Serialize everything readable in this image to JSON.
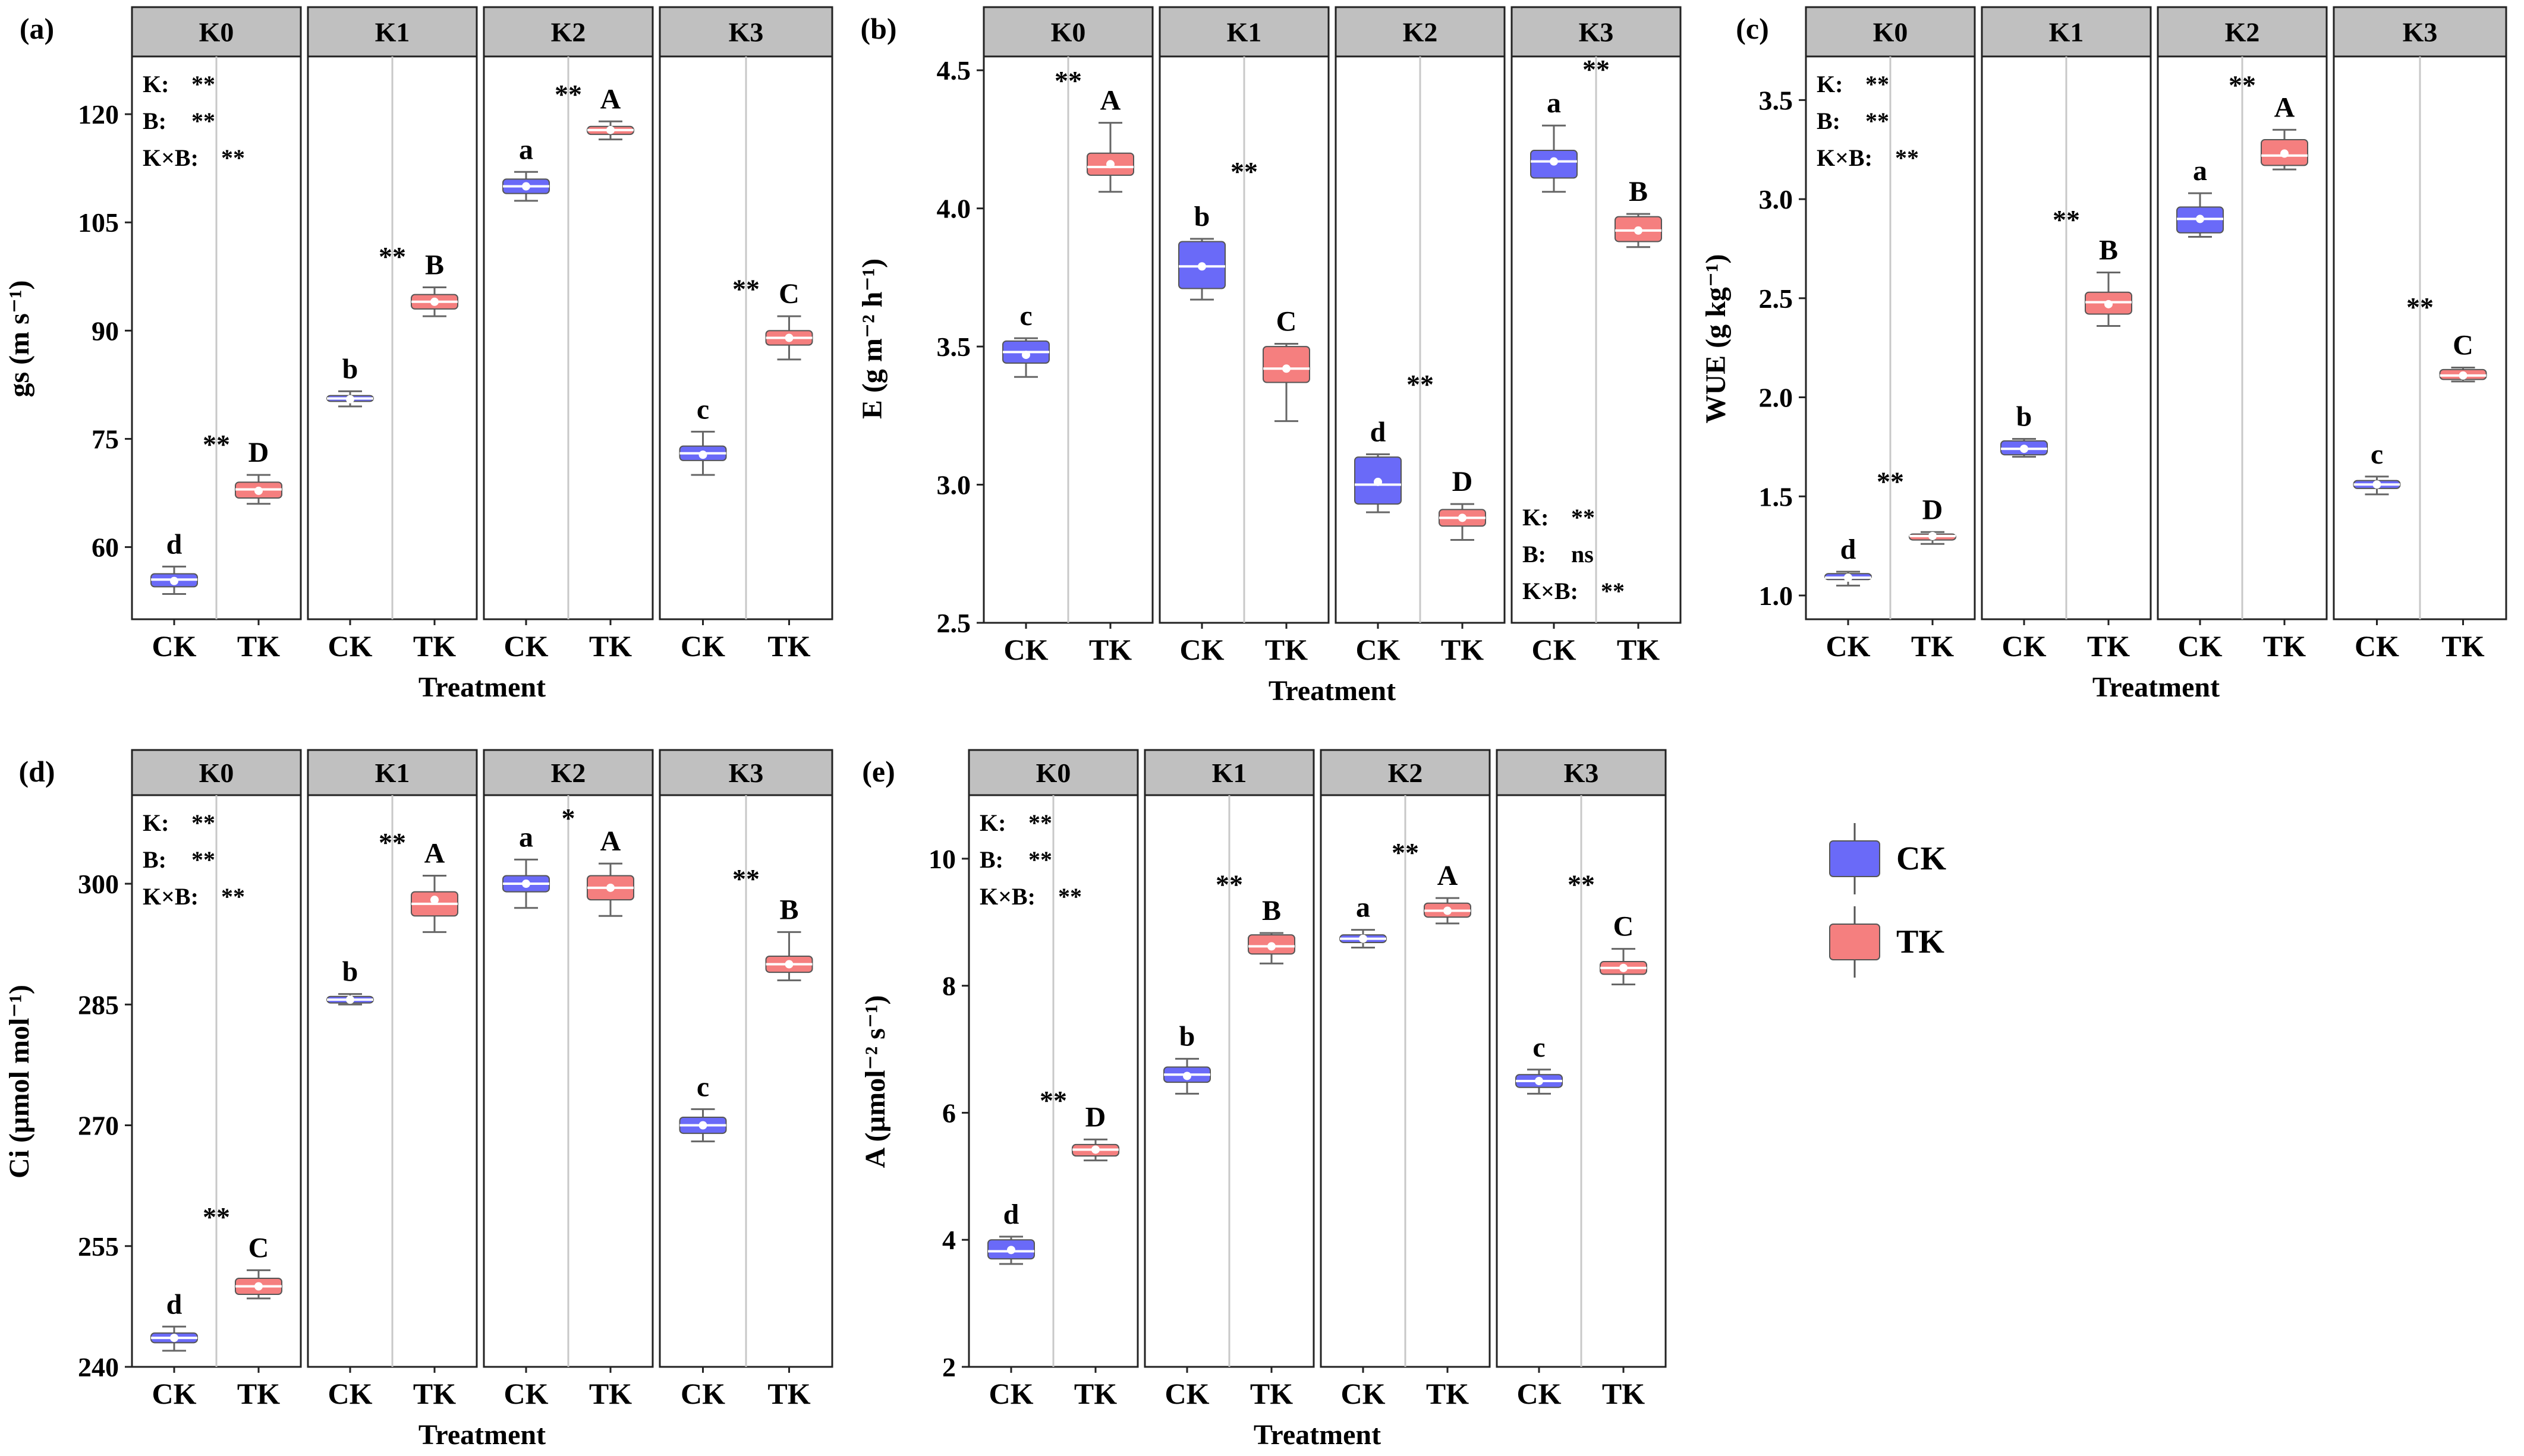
{
  "chart_data": [
    {
      "type": "box",
      "panel": "(a)",
      "ylabel": "gs (m s⁻¹)",
      "xlabel": "Treatment",
      "ylim": [
        50,
        128
      ],
      "yticks": [
        60,
        75,
        90,
        105,
        120
      ],
      "facets": [
        "K0",
        "K1",
        "K2",
        "K3"
      ],
      "categories": [
        "CK",
        "TK"
      ],
      "boxes": [
        {
          "facet": "K0",
          "group": "CK",
          "min": 53.5,
          "q1": 54.5,
          "median": 55.5,
          "q3": 56.3,
          "max": 57.3,
          "mean": 55.3,
          "letter": "d"
        },
        {
          "facet": "K0",
          "group": "TK",
          "min": 66.0,
          "q1": 66.8,
          "median": 68.0,
          "q3": 69.0,
          "max": 70.0,
          "mean": 67.8,
          "letter": "D"
        },
        {
          "facet": "K1",
          "group": "CK",
          "min": 79.5,
          "q1": 80.2,
          "median": 80.6,
          "q3": 81.0,
          "max": 81.6,
          "mean": 80.5,
          "letter": "b"
        },
        {
          "facet": "K1",
          "group": "TK",
          "min": 92.0,
          "q1": 93.0,
          "median": 94.0,
          "q3": 95.0,
          "max": 96.0,
          "mean": 94.0,
          "letter": "B"
        },
        {
          "facet": "K2",
          "group": "CK",
          "min": 108.0,
          "q1": 109.0,
          "median": 110.0,
          "q3": 111.0,
          "max": 112.0,
          "mean": 110.0,
          "letter": "a"
        },
        {
          "facet": "K2",
          "group": "TK",
          "min": 116.5,
          "q1": 117.2,
          "median": 117.8,
          "q3": 118.3,
          "max": 119.0,
          "mean": 117.8,
          "letter": "A"
        },
        {
          "facet": "K3",
          "group": "CK",
          "min": 70.0,
          "q1": 72.0,
          "median": 73.0,
          "q3": 74.0,
          "max": 76.0,
          "mean": 72.8,
          "letter": "c"
        },
        {
          "facet": "K3",
          "group": "TK",
          "min": 86.0,
          "q1": 88.0,
          "median": 89.0,
          "q3": 90.0,
          "max": 92.0,
          "mean": 89.0,
          "letter": "C"
        }
      ],
      "significance": [
        {
          "facet": "K0",
          "label": "**",
          "y": 73.0
        },
        {
          "facet": "K1",
          "label": "**",
          "y": 99.0
        },
        {
          "facet": "K2",
          "label": "**",
          "y": 121.5
        },
        {
          "facet": "K3",
          "label": "**",
          "y": 94.5
        }
      ],
      "anova": {
        "facet": "K0",
        "position": "top-left",
        "lines": [
          [
            "K:",
            "**"
          ],
          [
            "B:",
            "**"
          ],
          [
            "K×B:",
            "**"
          ]
        ]
      }
    },
    {
      "type": "box",
      "panel": "(b)",
      "ylabel": "E (g m⁻² h⁻¹)",
      "xlabel": "Treatment",
      "ylim": [
        2.5,
        4.55
      ],
      "yticks": [
        2.5,
        3.0,
        3.5,
        4.0,
        4.5
      ],
      "facets": [
        "K0",
        "K1",
        "K2",
        "K3"
      ],
      "categories": [
        "CK",
        "TK"
      ],
      "boxes": [
        {
          "facet": "K0",
          "group": "CK",
          "min": 3.39,
          "q1": 3.44,
          "median": 3.48,
          "q3": 3.52,
          "max": 3.53,
          "mean": 3.47,
          "letter": "c"
        },
        {
          "facet": "K0",
          "group": "TK",
          "min": 4.06,
          "q1": 4.12,
          "median": 4.15,
          "q3": 4.2,
          "max": 4.31,
          "mean": 4.16,
          "letter": "A"
        },
        {
          "facet": "K1",
          "group": "CK",
          "min": 3.67,
          "q1": 3.71,
          "median": 3.79,
          "q3": 3.88,
          "max": 3.89,
          "mean": 3.79,
          "letter": "b"
        },
        {
          "facet": "K1",
          "group": "TK",
          "min": 3.23,
          "q1": 3.37,
          "median": 3.42,
          "q3": 3.5,
          "max": 3.51,
          "mean": 3.42,
          "letter": "C"
        },
        {
          "facet": "K2",
          "group": "CK",
          "min": 2.9,
          "q1": 2.93,
          "median": 3.0,
          "q3": 3.1,
          "max": 3.11,
          "mean": 3.01,
          "letter": "d"
        },
        {
          "facet": "K2",
          "group": "TK",
          "min": 2.8,
          "q1": 2.85,
          "median": 2.88,
          "q3": 2.91,
          "max": 2.93,
          "mean": 2.88,
          "letter": "D"
        },
        {
          "facet": "K3",
          "group": "CK",
          "min": 4.06,
          "q1": 4.11,
          "median": 4.17,
          "q3": 4.21,
          "max": 4.3,
          "mean": 4.17,
          "letter": "a"
        },
        {
          "facet": "K3",
          "group": "TK",
          "min": 3.86,
          "q1": 3.88,
          "median": 3.92,
          "q3": 3.97,
          "max": 3.98,
          "mean": 3.92,
          "letter": "B"
        }
      ],
      "significance": [
        {
          "facet": "K0",
          "label": "**",
          "y": 4.43
        },
        {
          "facet": "K1",
          "label": "**",
          "y": 4.1
        },
        {
          "facet": "K2",
          "label": "**",
          "y": 3.33
        },
        {
          "facet": "K3",
          "label": "**",
          "y": 4.47
        }
      ],
      "anova": {
        "facet": "K3",
        "position": "bottom-left",
        "lines": [
          [
            "K:",
            "**"
          ],
          [
            "B:",
            "ns"
          ],
          [
            "K×B:",
            "**"
          ]
        ]
      }
    },
    {
      "type": "box",
      "panel": "(c)",
      "ylabel": "WUE (g kg⁻¹)",
      "xlabel": "Treatment",
      "ylim": [
        0.88,
        3.72
      ],
      "yticks": [
        1.0,
        1.5,
        2.0,
        2.5,
        3.0,
        3.5
      ],
      "facets": [
        "K0",
        "K1",
        "K2",
        "K3"
      ],
      "categories": [
        "CK",
        "TK"
      ],
      "boxes": [
        {
          "facet": "K0",
          "group": "CK",
          "min": 1.05,
          "q1": 1.08,
          "median": 1.09,
          "q3": 1.11,
          "max": 1.12,
          "mean": 1.09,
          "letter": "d"
        },
        {
          "facet": "K0",
          "group": "TK",
          "min": 1.26,
          "q1": 1.28,
          "median": 1.3,
          "q3": 1.31,
          "max": 1.32,
          "mean": 1.3,
          "letter": "D"
        },
        {
          "facet": "K1",
          "group": "CK",
          "min": 1.7,
          "q1": 1.71,
          "median": 1.74,
          "q3": 1.78,
          "max": 1.79,
          "mean": 1.74,
          "letter": "b"
        },
        {
          "facet": "K1",
          "group": "TK",
          "min": 2.36,
          "q1": 2.42,
          "median": 2.48,
          "q3": 2.53,
          "max": 2.63,
          "mean": 2.47,
          "letter": "B"
        },
        {
          "facet": "K2",
          "group": "CK",
          "min": 2.81,
          "q1": 2.83,
          "median": 2.9,
          "q3": 2.96,
          "max": 3.03,
          "mean": 2.9,
          "letter": "a"
        },
        {
          "facet": "K2",
          "group": "TK",
          "min": 3.15,
          "q1": 3.17,
          "median": 3.22,
          "q3": 3.3,
          "max": 3.35,
          "mean": 3.23,
          "letter": "A"
        },
        {
          "facet": "K3",
          "group": "CK",
          "min": 1.51,
          "q1": 1.54,
          "median": 1.56,
          "q3": 1.58,
          "max": 1.6,
          "mean": 1.56,
          "letter": "c"
        },
        {
          "facet": "K3",
          "group": "TK",
          "min": 2.08,
          "q1": 2.09,
          "median": 2.11,
          "q3": 2.14,
          "max": 2.15,
          "mean": 2.11,
          "letter": "C"
        }
      ],
      "significance": [
        {
          "facet": "K0",
          "label": "**",
          "y": 1.53
        },
        {
          "facet": "K1",
          "label": "**",
          "y": 2.85
        },
        {
          "facet": "K2",
          "label": "**",
          "y": 3.53
        },
        {
          "facet": "K3",
          "label": "**",
          "y": 2.41
        }
      ],
      "anova": {
        "facet": "K0",
        "position": "top-left",
        "lines": [
          [
            "K:",
            "**"
          ],
          [
            "B:",
            "**"
          ],
          [
            "K×B:",
            "**"
          ]
        ]
      }
    },
    {
      "type": "box",
      "panel": "(d)",
      "ylabel": "Ci (µmol mol⁻¹)",
      "xlabel": "Treatment",
      "ylim": [
        240,
        311
      ],
      "yticks": [
        240,
        255,
        270,
        285,
        300
      ],
      "facets": [
        "K0",
        "K1",
        "K2",
        "K3"
      ],
      "categories": [
        "CK",
        "TK"
      ],
      "boxes": [
        {
          "facet": "K0",
          "group": "CK",
          "min": 242.0,
          "q1": 243.0,
          "median": 243.6,
          "q3": 244.2,
          "max": 245.0,
          "mean": 243.6,
          "letter": "d"
        },
        {
          "facet": "K0",
          "group": "TK",
          "min": 248.5,
          "q1": 249.0,
          "median": 250.0,
          "q3": 251.0,
          "max": 252.0,
          "mean": 250.0,
          "letter": "C"
        },
        {
          "facet": "K1",
          "group": "CK",
          "min": 285.0,
          "q1": 285.2,
          "median": 285.6,
          "q3": 286.0,
          "max": 286.3,
          "mean": 285.6,
          "letter": "b"
        },
        {
          "facet": "K1",
          "group": "TK",
          "min": 294.0,
          "q1": 296.0,
          "median": 297.5,
          "q3": 299.0,
          "max": 301.0,
          "mean": 298.0,
          "letter": "A"
        },
        {
          "facet": "K2",
          "group": "CK",
          "min": 297.0,
          "q1": 299.0,
          "median": 300.0,
          "q3": 301.0,
          "max": 303.0,
          "mean": 300.0,
          "letter": "a"
        },
        {
          "facet": "K2",
          "group": "TK",
          "min": 296.0,
          "q1": 298.0,
          "median": 299.5,
          "q3": 301.0,
          "max": 302.5,
          "mean": 299.5,
          "letter": "A"
        },
        {
          "facet": "K3",
          "group": "CK",
          "min": 268.0,
          "q1": 269.0,
          "median": 270.0,
          "q3": 271.0,
          "max": 272.0,
          "mean": 270.0,
          "letter": "c"
        },
        {
          "facet": "K3",
          "group": "TK",
          "min": 288.0,
          "q1": 289.0,
          "median": 290.0,
          "q3": 291.0,
          "max": 294.0,
          "mean": 290.0,
          "letter": "B"
        }
      ],
      "significance": [
        {
          "facet": "K0",
          "label": "**",
          "y": 257.5
        },
        {
          "facet": "K1",
          "label": "**",
          "y": 304.0
        },
        {
          "facet": "K2",
          "label": "*",
          "y": 307.0
        },
        {
          "facet": "K3",
          "label": "**",
          "y": 299.5
        }
      ],
      "anova": {
        "facet": "K0",
        "position": "top-left",
        "lines": [
          [
            "K:",
            "**"
          ],
          [
            "B:",
            "**"
          ],
          [
            "K×B:",
            "**"
          ]
        ]
      }
    },
    {
      "type": "box",
      "panel": "(e)",
      "ylabel": "A (µmol⁻² s⁻¹)",
      "xlabel": "Treatment",
      "ylim": [
        2,
        11
      ],
      "yticks": [
        2,
        4,
        6,
        8,
        10
      ],
      "facets": [
        "K0",
        "K1",
        "K2",
        "K3"
      ],
      "categories": [
        "CK",
        "TK"
      ],
      "boxes": [
        {
          "facet": "K0",
          "group": "CK",
          "min": 3.62,
          "q1": 3.7,
          "median": 3.82,
          "q3": 4.0,
          "max": 4.05,
          "mean": 3.84,
          "letter": "d"
        },
        {
          "facet": "K0",
          "group": "TK",
          "min": 5.25,
          "q1": 5.32,
          "median": 5.42,
          "q3": 5.5,
          "max": 5.58,
          "mean": 5.42,
          "letter": "D"
        },
        {
          "facet": "K1",
          "group": "CK",
          "min": 6.3,
          "q1": 6.48,
          "median": 6.6,
          "q3": 6.72,
          "max": 6.85,
          "mean": 6.58,
          "letter": "b"
        },
        {
          "facet": "K1",
          "group": "TK",
          "min": 8.35,
          "q1": 8.5,
          "median": 8.62,
          "q3": 8.8,
          "max": 8.83,
          "mean": 8.62,
          "letter": "B"
        },
        {
          "facet": "K2",
          "group": "CK",
          "min": 8.6,
          "q1": 8.68,
          "median": 8.74,
          "q3": 8.8,
          "max": 8.88,
          "mean": 8.74,
          "letter": "a"
        },
        {
          "facet": "K2",
          "group": "TK",
          "min": 8.98,
          "q1": 9.08,
          "median": 9.18,
          "q3": 9.3,
          "max": 9.38,
          "mean": 9.18,
          "letter": "A"
        },
        {
          "facet": "K3",
          "group": "CK",
          "min": 6.3,
          "q1": 6.4,
          "median": 6.5,
          "q3": 6.6,
          "max": 6.68,
          "mean": 6.5,
          "letter": "c"
        },
        {
          "facet": "K3",
          "group": "TK",
          "min": 8.02,
          "q1": 8.18,
          "median": 8.28,
          "q3": 8.38,
          "max": 8.58,
          "mean": 8.28,
          "letter": "C"
        }
      ],
      "significance": [
        {
          "facet": "K0",
          "label": "**",
          "y": 6.05
        },
        {
          "facet": "K1",
          "label": "**",
          "y": 9.45
        },
        {
          "facet": "K2",
          "label": "**",
          "y": 9.95
        },
        {
          "facet": "K3",
          "label": "**",
          "y": 9.45
        }
      ],
      "anova": {
        "facet": "K0",
        "position": "top-left",
        "lines": [
          [
            "K:",
            "**"
          ],
          [
            "B:",
            "**"
          ],
          [
            "K×B:",
            "**"
          ]
        ]
      }
    }
  ],
  "legend": {
    "position": "right",
    "items": [
      {
        "label": "CK",
        "color": "#6a6af8"
      },
      {
        "label": "TK",
        "color": "#f57f7f"
      }
    ]
  },
  "colors": {
    "CK": "#6a6af8",
    "TK": "#f57f7f",
    "strip": "#c0c0c0"
  }
}
